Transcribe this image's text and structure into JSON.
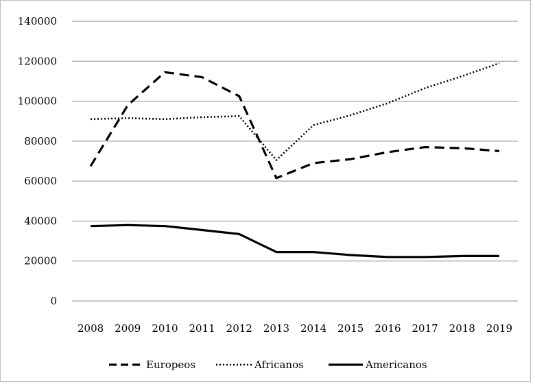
{
  "chart_data": {
    "type": "line",
    "title": "",
    "xlabel": "",
    "ylabel": "",
    "categories": [
      "2008",
      "2009",
      "2010",
      "2011",
      "2012",
      "2013",
      "2014",
      "2015",
      "2016",
      "2017",
      "2018",
      "2019"
    ],
    "ylim": [
      0,
      140000
    ],
    "yticks": [
      "0",
      "20000",
      "40000",
      "60000",
      "80000",
      "100000",
      "120000",
      "140000"
    ],
    "grid": true,
    "legend": "bottom",
    "series": [
      {
        "name": "Europeos",
        "style": "dashed",
        "color": "#000000",
        "values": [
          67500,
          98000,
          114500,
          112000,
          102500,
          61500,
          69000,
          71000,
          74500,
          77000,
          76500,
          75000
        ]
      },
      {
        "name": "Africanos",
        "style": "dotted",
        "color": "#000000",
        "values": [
          91000,
          91500,
          91000,
          92000,
          92500,
          70500,
          88000,
          93000,
          99000,
          106500,
          112500,
          119000
        ]
      },
      {
        "name": "Americanos",
        "style": "solid",
        "color": "#000000",
        "values": [
          37500,
          38000,
          37500,
          35500,
          33500,
          24500,
          24500,
          23000,
          22000,
          22000,
          22500,
          22500
        ]
      }
    ]
  }
}
